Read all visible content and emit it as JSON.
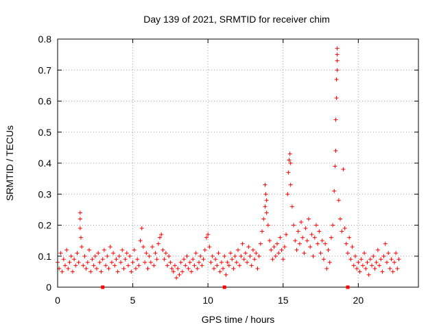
{
  "chart_data": {
    "type": "scatter",
    "title": "Day 139 of 2021, SRMTID for receiver chim",
    "xlabel": "GPS time / hours",
    "ylabel": "SRMTID / TECUs",
    "xlim": [
      0,
      24
    ],
    "ylim": [
      0,
      0.8
    ],
    "xticks": [
      0,
      5,
      10,
      15,
      20
    ],
    "yticks": [
      0,
      0.1,
      0.2,
      0.3,
      0.4,
      0.5,
      0.6,
      0.7,
      0.8
    ],
    "grid": true,
    "marker": "+",
    "color": "#ff0000",
    "data_gap_markers_x": [
      3.0,
      11.1,
      19.3
    ],
    "series": [
      {
        "name": "SRMTID",
        "points": [
          [
            0.0,
            0.08
          ],
          [
            0.1,
            0.06
          ],
          [
            0.2,
            0.11
          ],
          [
            0.3,
            0.05
          ],
          [
            0.4,
            0.09
          ],
          [
            0.5,
            0.07
          ],
          [
            0.6,
            0.12
          ],
          [
            0.7,
            0.06
          ],
          [
            0.8,
            0.08
          ],
          [
            0.9,
            0.1
          ],
          [
            1.0,
            0.05
          ],
          [
            1.1,
            0.09
          ],
          [
            1.2,
            0.07
          ],
          [
            1.3,
            0.11
          ],
          [
            1.4,
            0.08
          ],
          [
            1.5,
            0.24
          ],
          [
            1.5,
            0.22
          ],
          [
            1.5,
            0.19
          ],
          [
            1.55,
            0.16
          ],
          [
            1.6,
            0.13
          ],
          [
            1.7,
            0.07
          ],
          [
            1.8,
            0.1
          ],
          [
            1.9,
            0.06
          ],
          [
            2.0,
            0.08
          ],
          [
            2.1,
            0.12
          ],
          [
            2.2,
            0.05
          ],
          [
            2.3,
            0.09
          ],
          [
            2.4,
            0.07
          ],
          [
            2.5,
            0.1
          ],
          [
            2.6,
            0.06
          ],
          [
            2.7,
            0.11
          ],
          [
            2.8,
            0.08
          ],
          [
            2.9,
            0.05
          ],
          [
            3.0,
            0.09
          ],
          [
            3.1,
            0.12
          ],
          [
            3.2,
            0.07
          ],
          [
            3.3,
            0.1
          ],
          [
            3.4,
            0.06
          ],
          [
            3.5,
            0.13
          ],
          [
            3.6,
            0.08
          ],
          [
            3.7,
            0.11
          ],
          [
            3.8,
            0.07
          ],
          [
            3.9,
            0.09
          ],
          [
            4.0,
            0.05
          ],
          [
            4.1,
            0.1
          ],
          [
            4.2,
            0.08
          ],
          [
            4.3,
            0.12
          ],
          [
            4.4,
            0.06
          ],
          [
            4.5,
            0.09
          ],
          [
            4.6,
            0.11
          ],
          [
            4.7,
            0.07
          ],
          [
            4.8,
            0.1
          ],
          [
            4.9,
            0.05
          ],
          [
            5.0,
            0.08
          ],
          [
            5.1,
            0.12
          ],
          [
            5.2,
            0.06
          ],
          [
            5.3,
            0.09
          ],
          [
            5.4,
            0.07
          ],
          [
            5.5,
            0.15
          ],
          [
            5.6,
            0.19
          ],
          [
            5.7,
            0.13
          ],
          [
            5.8,
            0.08
          ],
          [
            5.9,
            0.11
          ],
          [
            6.0,
            0.06
          ],
          [
            6.1,
            0.1
          ],
          [
            6.2,
            0.08
          ],
          [
            6.3,
            0.13
          ],
          [
            6.4,
            0.07
          ],
          [
            6.5,
            0.11
          ],
          [
            6.6,
            0.09
          ],
          [
            6.7,
            0.14
          ],
          [
            6.8,
            0.16
          ],
          [
            6.9,
            0.17
          ],
          [
            7.0,
            0.12
          ],
          [
            7.1,
            0.09
          ],
          [
            7.2,
            0.11
          ],
          [
            7.3,
            0.07
          ],
          [
            7.4,
            0.1
          ],
          [
            7.5,
            0.08
          ],
          [
            7.6,
            0.06
          ],
          [
            7.7,
            0.05
          ],
          [
            7.8,
            0.07
          ],
          [
            7.9,
            0.03
          ],
          [
            8.0,
            0.06
          ],
          [
            8.1,
            0.04
          ],
          [
            8.2,
            0.08
          ],
          [
            8.3,
            0.05
          ],
          [
            8.4,
            0.09
          ],
          [
            8.5,
            0.07
          ],
          [
            8.6,
            0.1
          ],
          [
            8.7,
            0.06
          ],
          [
            8.8,
            0.08
          ],
          [
            8.9,
            0.05
          ],
          [
            9.0,
            0.09
          ],
          [
            9.1,
            0.07
          ],
          [
            9.2,
            0.11
          ],
          [
            9.3,
            0.06
          ],
          [
            9.4,
            0.08
          ],
          [
            9.5,
            0.1
          ],
          [
            9.6,
            0.07
          ],
          [
            9.7,
            0.09
          ],
          [
            9.8,
            0.12
          ],
          [
            9.9,
            0.16
          ],
          [
            10.0,
            0.17
          ],
          [
            10.1,
            0.13
          ],
          [
            10.2,
            0.08
          ],
          [
            10.3,
            0.1
          ],
          [
            10.4,
            0.06
          ],
          [
            10.5,
            0.09
          ],
          [
            10.6,
            0.07
          ],
          [
            10.7,
            0.11
          ],
          [
            10.8,
            0.05
          ],
          [
            10.9,
            0.08
          ],
          [
            11.0,
            0.06
          ],
          [
            11.1,
            0.1
          ],
          [
            11.2,
            0.04
          ],
          [
            11.3,
            0.08
          ],
          [
            11.4,
            0.07
          ],
          [
            11.5,
            0.11
          ],
          [
            11.6,
            0.09
          ],
          [
            11.7,
            0.06
          ],
          [
            11.8,
            0.1
          ],
          [
            11.9,
            0.08
          ],
          [
            12.0,
            0.12
          ],
          [
            12.1,
            0.07
          ],
          [
            12.2,
            0.1
          ],
          [
            12.3,
            0.14
          ],
          [
            12.4,
            0.09
          ],
          [
            12.5,
            0.11
          ],
          [
            12.6,
            0.08
          ],
          [
            12.7,
            0.13
          ],
          [
            12.8,
            0.1
          ],
          [
            12.9,
            0.07
          ],
          [
            13.0,
            0.12
          ],
          [
            13.1,
            0.09
          ],
          [
            13.2,
            0.11
          ],
          [
            13.3,
            0.06
          ],
          [
            13.4,
            0.1
          ],
          [
            13.5,
            0.14
          ],
          [
            13.6,
            0.18
          ],
          [
            13.7,
            0.22
          ],
          [
            13.8,
            0.26
          ],
          [
            13.8,
            0.33
          ],
          [
            13.85,
            0.3
          ],
          [
            13.9,
            0.28
          ],
          [
            13.9,
            0.24
          ],
          [
            14.0,
            0.2
          ],
          [
            14.1,
            0.15
          ],
          [
            14.2,
            0.12
          ],
          [
            14.3,
            0.09
          ],
          [
            14.4,
            0.13
          ],
          [
            14.5,
            0.1
          ],
          [
            14.6,
            0.14
          ],
          [
            14.7,
            0.11
          ],
          [
            14.8,
            0.16
          ],
          [
            14.9,
            0.12
          ],
          [
            15.0,
            0.09
          ],
          [
            15.1,
            0.13
          ],
          [
            15.2,
            0.17
          ],
          [
            15.3,
            0.3
          ],
          [
            15.35,
            0.37
          ],
          [
            15.4,
            0.41
          ],
          [
            15.45,
            0.43
          ],
          [
            15.5,
            0.4
          ],
          [
            15.5,
            0.33
          ],
          [
            15.6,
            0.26
          ],
          [
            15.7,
            0.2
          ],
          [
            15.8,
            0.15
          ],
          [
            15.9,
            0.12
          ],
          [
            16.0,
            0.18
          ],
          [
            16.1,
            0.14
          ],
          [
            16.2,
            0.21
          ],
          [
            16.3,
            0.16
          ],
          [
            16.4,
            0.11
          ],
          [
            16.5,
            0.19
          ],
          [
            16.6,
            0.15
          ],
          [
            16.7,
            0.22
          ],
          [
            16.8,
            0.13
          ],
          [
            16.9,
            0.17
          ],
          [
            17.0,
            0.1
          ],
          [
            17.1,
            0.16
          ],
          [
            17.2,
            0.2
          ],
          [
            17.3,
            0.14
          ],
          [
            17.4,
            0.18
          ],
          [
            17.5,
            0.11
          ],
          [
            17.6,
            0.15
          ],
          [
            17.7,
            0.09
          ],
          [
            17.8,
            0.14
          ],
          [
            17.9,
            0.06
          ],
          [
            18.0,
            0.12
          ],
          [
            18.1,
            0.08
          ],
          [
            18.2,
            0.16
          ],
          [
            18.3,
            0.2
          ],
          [
            18.4,
            0.31
          ],
          [
            18.45,
            0.39
          ],
          [
            18.5,
            0.44
          ],
          [
            18.5,
            0.54
          ],
          [
            18.55,
            0.61
          ],
          [
            18.55,
            0.67
          ],
          [
            18.6,
            0.7
          ],
          [
            18.6,
            0.73
          ],
          [
            18.6,
            0.75
          ],
          [
            18.6,
            0.77
          ],
          [
            18.7,
            0.28
          ],
          [
            18.8,
            0.22
          ],
          [
            18.9,
            0.18
          ],
          [
            19.0,
            0.38
          ],
          [
            19.1,
            0.19
          ],
          [
            19.2,
            0.14
          ],
          [
            19.3,
            0.11
          ],
          [
            19.4,
            0.16
          ],
          [
            19.5,
            0.09
          ],
          [
            19.6,
            0.13
          ],
          [
            19.7,
            0.07
          ],
          [
            19.8,
            0.1
          ],
          [
            19.9,
            0.06
          ],
          [
            20.0,
            0.08
          ],
          [
            20.1,
            0.05
          ],
          [
            20.2,
            0.09
          ],
          [
            20.3,
            0.07
          ],
          [
            20.4,
            0.11
          ],
          [
            20.5,
            0.06
          ],
          [
            20.6,
            0.08
          ],
          [
            20.7,
            0.04
          ],
          [
            20.8,
            0.09
          ],
          [
            20.9,
            0.07
          ],
          [
            21.0,
            0.1
          ],
          [
            21.1,
            0.06
          ],
          [
            21.2,
            0.08
          ],
          [
            21.3,
            0.12
          ],
          [
            21.4,
            0.07
          ],
          [
            21.5,
            0.09
          ],
          [
            21.6,
            0.05
          ],
          [
            21.7,
            0.1
          ],
          [
            21.8,
            0.14
          ],
          [
            21.9,
            0.08
          ],
          [
            22.0,
            0.11
          ],
          [
            22.1,
            0.06
          ],
          [
            22.2,
            0.09
          ],
          [
            22.3,
            0.05
          ],
          [
            22.4,
            0.08
          ],
          [
            22.5,
            0.11
          ],
          [
            22.6,
            0.06
          ],
          [
            22.7,
            0.09
          ]
        ]
      }
    ]
  }
}
